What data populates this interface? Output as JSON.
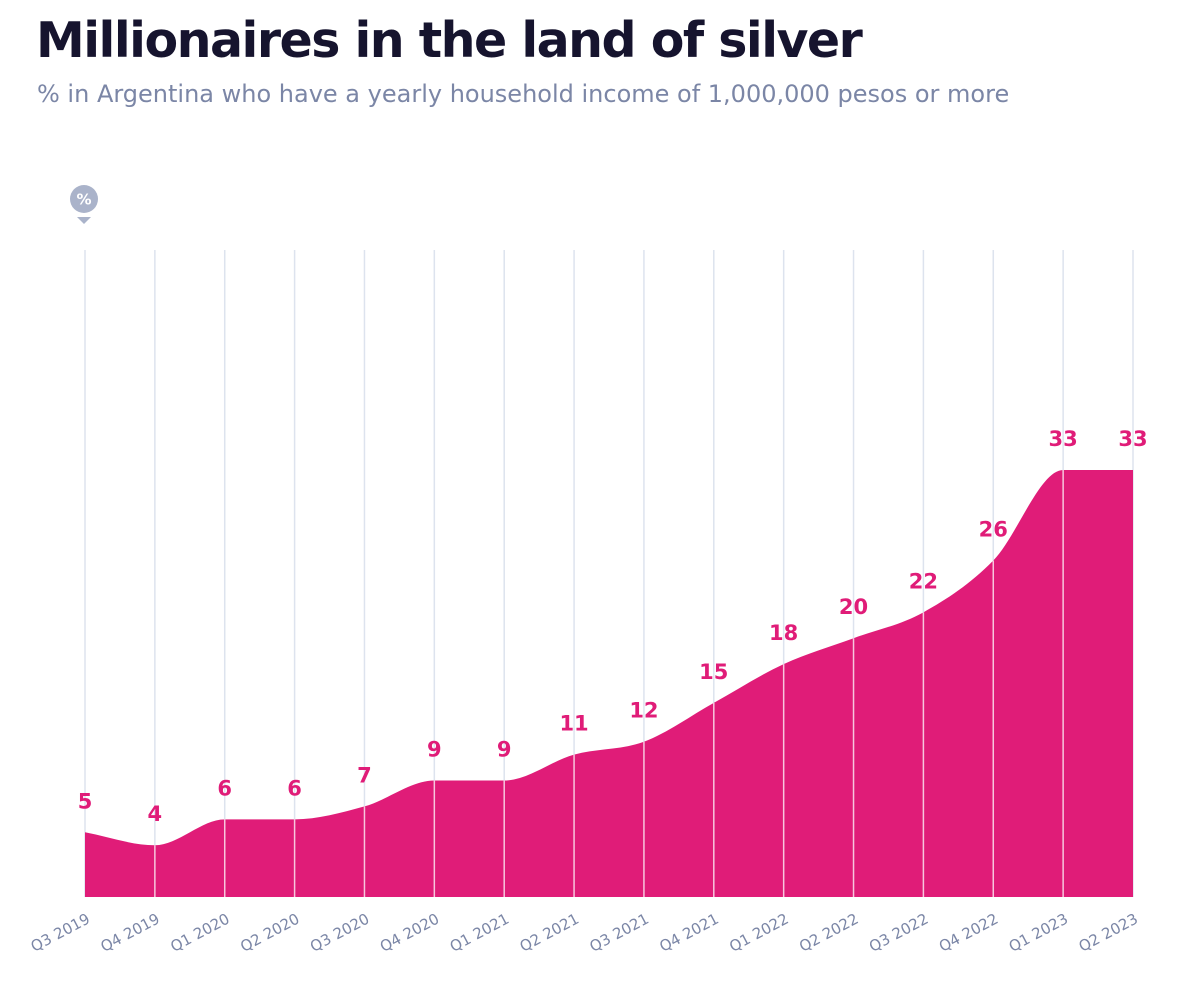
{
  "colors": {
    "area": "#e01c78",
    "value_label": "#e01c78",
    "gridline": "#dde3ee",
    "axis_label": "#7b86a6",
    "badge": "#aab3ca",
    "title": "#16142e"
  },
  "chart_data": {
    "type": "area",
    "title": "Millionaires in the land of silver",
    "subtitle": "% in Argentina who have a yearly household income of 1,000,000 pesos or more",
    "unit_label": "%",
    "categories": [
      "Q3 2019",
      "Q4 2019",
      "Q1 2020",
      "Q2 2020",
      "Q3 2020",
      "Q4 2020",
      "Q1 2021",
      "Q2 2021",
      "Q3 2021",
      "Q4 2021",
      "Q1 2022",
      "Q2 2022",
      "Q3 2022",
      "Q4 2022",
      "Q1 2023",
      "Q2 2023"
    ],
    "values": [
      5,
      4,
      6,
      6,
      7,
      9,
      9,
      11,
      12,
      15,
      18,
      20,
      22,
      26,
      33,
      33
    ],
    "ylim": [
      0,
      50
    ],
    "grid": "vertical",
    "xlabel": "",
    "ylabel": ""
  }
}
